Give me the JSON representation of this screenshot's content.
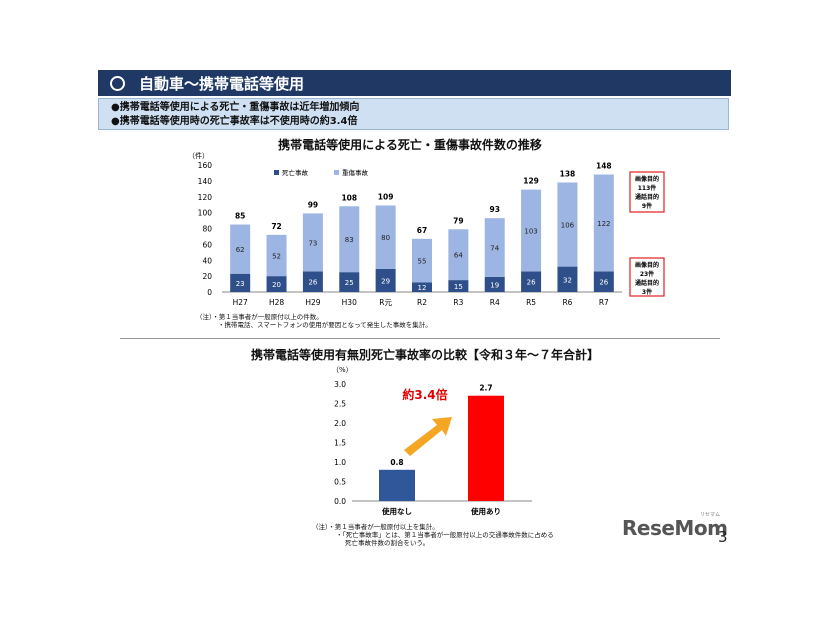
{
  "header": {
    "title": "自動車～携帯電話等使用"
  },
  "summary": {
    "lines": [
      "●携帯電話等使用による死亡・重傷事故は近年増加傾向",
      "●携帯電話等使用時の死亡事故率は不使用時の約3.4倍"
    ]
  },
  "colors": {
    "header_bg": "#1f3864",
    "fatal": "#2f4f8a",
    "serious": "#9db5e3",
    "used": "#ff0000",
    "not_used": "#2f579a",
    "arrow": "#f5a623",
    "callout_border": "#e02020"
  },
  "chart_data": [
    {
      "type": "bar",
      "stacked": true,
      "title": "携帯電話等使用による死亡・重傷事故件数の推移",
      "ylabel": "（件）",
      "ylim": [
        0,
        160
      ],
      "yticks": [
        0,
        20,
        40,
        60,
        80,
        100,
        120,
        140,
        160
      ],
      "categories": [
        "H27",
        "H28",
        "H29",
        "H30",
        "R元",
        "R2",
        "R3",
        "R4",
        "R5",
        "R6",
        "R7"
      ],
      "series": [
        {
          "name": "死亡事故",
          "values": [
            23,
            20,
            26,
            25,
            29,
            12,
            15,
            19,
            26,
            32,
            26
          ]
        },
        {
          "name": "重傷事故",
          "values": [
            62,
            52,
            73,
            83,
            80,
            55,
            64,
            74,
            103,
            106,
            122
          ]
        }
      ],
      "totals": [
        85,
        72,
        99,
        108,
        109,
        67,
        79,
        93,
        129,
        138,
        148
      ],
      "legend_position": "top-left",
      "annotations": [
        {
          "lines": [
            "画像目的",
            "113件",
            "通話目的",
            "9件"
          ]
        },
        {
          "lines": [
            "画像目的",
            "23件",
            "通話目的",
            "3件"
          ]
        }
      ],
      "notes": [
        "（注）・第１当事者が一般原付以上の件数。",
        "・携帯電話、スマートフォンの使用が要因となって発生した事故を集計。"
      ]
    },
    {
      "type": "bar",
      "title": "携帯電話等使用有無別死亡事故率の比較【令和３年～７年合計】",
      "ylabel": "（%）",
      "ylim": [
        0,
        3.0
      ],
      "yticks": [
        "0.0",
        "0.5",
        "1.0",
        "1.5",
        "2.0",
        "2.5",
        "3.0"
      ],
      "categories": [
        "使用なし",
        "使用あり"
      ],
      "values": [
        0.8,
        2.7
      ],
      "value_labels": [
        "0.8",
        "2.7"
      ],
      "annotation": "約3.4倍",
      "notes": [
        "（注）・第１当事者が一般原付以上を集計。",
        "・「死亡事故率」とは、第１当事者が一般原付以上の交通事故件数に占める",
        "死亡事故件数の割合をいう。"
      ]
    }
  ],
  "brand": {
    "logo": "ReseMom",
    "logo_kana": "リセマム",
    "page_number": "3"
  }
}
